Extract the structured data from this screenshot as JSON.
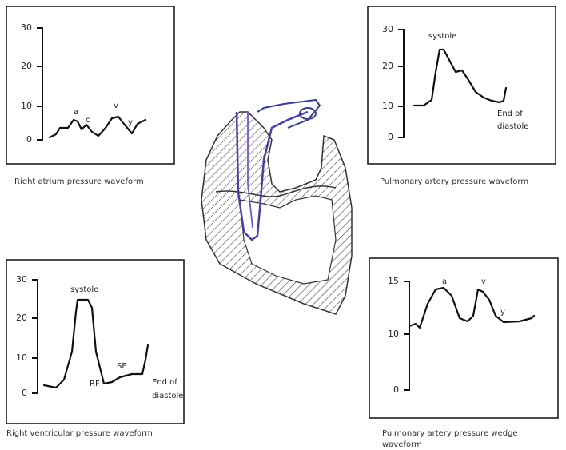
{
  "panels": [
    {
      "yticks": [
        30,
        20,
        10,
        0
      ],
      "annotations": [
        "a",
        "c",
        "v",
        "y"
      ],
      "caption": "Right atrium pressure waveform"
    },
    {
      "yticks": [
        30,
        20,
        10,
        0
      ],
      "annotations": [
        "systole",
        "End of",
        "diastole"
      ],
      "caption": "Pulmonary artery pressure waveform"
    },
    {
      "yticks": [
        30,
        20,
        10,
        0
      ],
      "annotations": [
        "systole",
        "RF",
        "SF",
        "End of",
        "diastole"
      ],
      "caption": "Right ventricular pressure waveform"
    },
    {
      "yticks": [
        15,
        10,
        0
      ],
      "annotations": [
        "a",
        "v",
        "y"
      ],
      "caption": "Pulmonary artery pressure wedge waveform"
    }
  ]
}
